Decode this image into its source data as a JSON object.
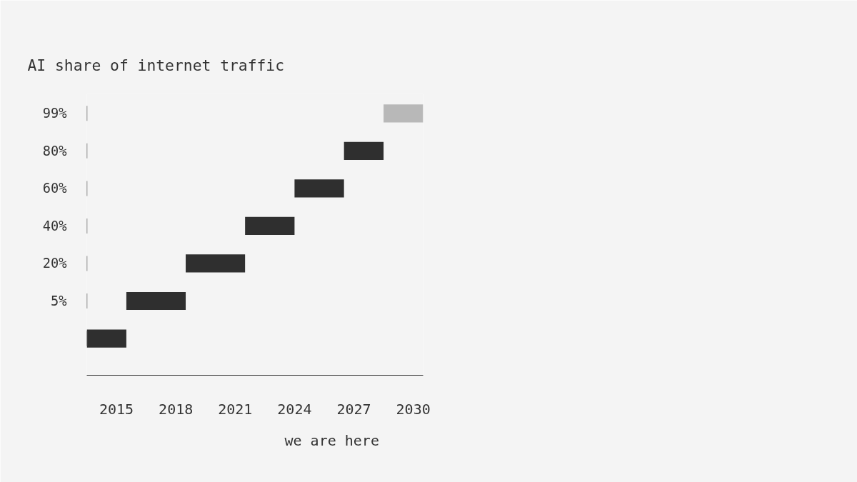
{
  "chart_data": {
    "type": "bar",
    "orientation": "horizontal",
    "title": "AI share of internet traffic",
    "categories": [
      "99%",
      "80%",
      "60%",
      "40%",
      "20%",
      "5%",
      null
    ],
    "base": [
      2028.5,
      2026.5,
      2024.0,
      2021.5,
      2018.5,
      2015.5,
      2013.5
    ],
    "values": [
      2.0,
      2.0,
      2.5,
      2.5,
      3.0,
      3.0,
      2.0
    ],
    "colors": [
      "#b8b8b8",
      "#2f2f2f",
      "#2f2f2f",
      "#2f2f2f",
      "#2f2f2f",
      "#2f2f2f",
      "#2f2f2f"
    ],
    "xlim": [
      2013.5,
      2030.5
    ],
    "xticks": [
      2015,
      2018,
      2021,
      2024,
      2027,
      2030
    ],
    "annotations": [
      "we are here"
    ]
  }
}
